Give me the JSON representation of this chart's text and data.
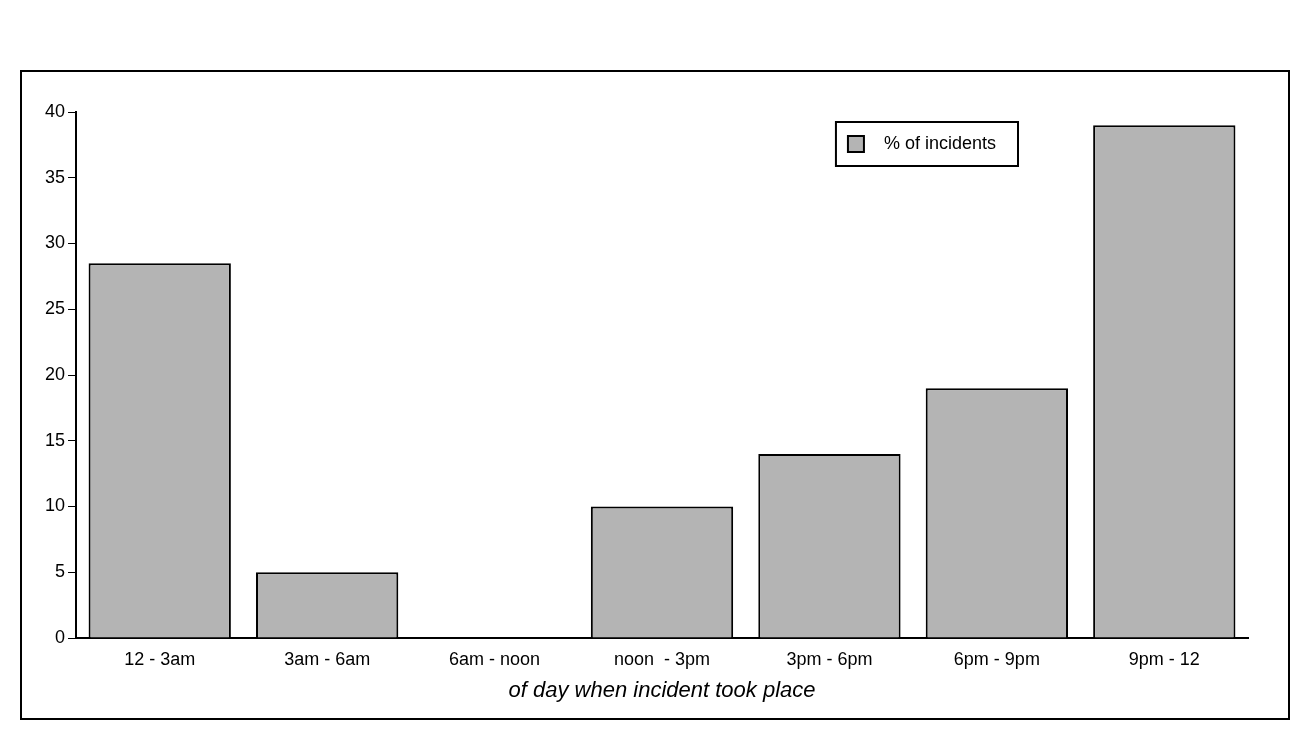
{
  "chart_data": {
    "type": "bar",
    "xlabel": "of day when incident took place",
    "categories": [
      "12 - 3am",
      "3am - 6am",
      "6am - noon",
      "noon  - 3pm",
      "3pm - 6pm",
      "6pm - 9pm",
      "9pm - 12"
    ],
    "series": [
      {
        "name": "% of incidents",
        "color": "#b4b4b4",
        "values": [
          28.5,
          5,
          0,
          10,
          14,
          19,
          39
        ]
      }
    ],
    "ylim": [
      0,
      40
    ],
    "yticks": [
      0,
      5,
      10,
      15,
      20,
      25,
      30,
      35,
      40
    ],
    "grid": false,
    "legend": "top right"
  }
}
